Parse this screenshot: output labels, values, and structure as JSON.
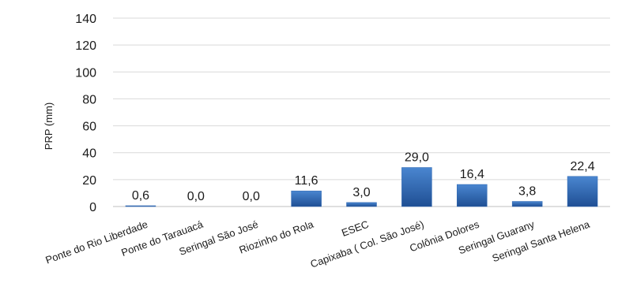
{
  "chart_data": {
    "type": "bar",
    "title": "",
    "xlabel": "",
    "ylabel": "PRP (mm)",
    "ylim": [
      0,
      140
    ],
    "yticks": [
      0,
      20,
      40,
      60,
      80,
      100,
      120,
      140
    ],
    "grid": true,
    "legend": "none",
    "bar_color": "#2e67b1",
    "categories": [
      "Ponte do Rio Liberdade",
      "Ponte do Tarauacá",
      "Seringal São José",
      "Riozinho do Rola",
      "ESEC",
      "Capixaba ( Col. São José)",
      "Colônia Dolores",
      "Seringal Guarany",
      "Seringal Santa Helena"
    ],
    "values": [
      0.6,
      0.0,
      0.0,
      11.6,
      3.0,
      29.0,
      16.4,
      3.8,
      22.4
    ],
    "data_labels": [
      "0,6",
      "0,0",
      "0,0",
      "11,6",
      "3,0",
      "29,0",
      "16,4",
      "3,8",
      "22,4"
    ]
  }
}
